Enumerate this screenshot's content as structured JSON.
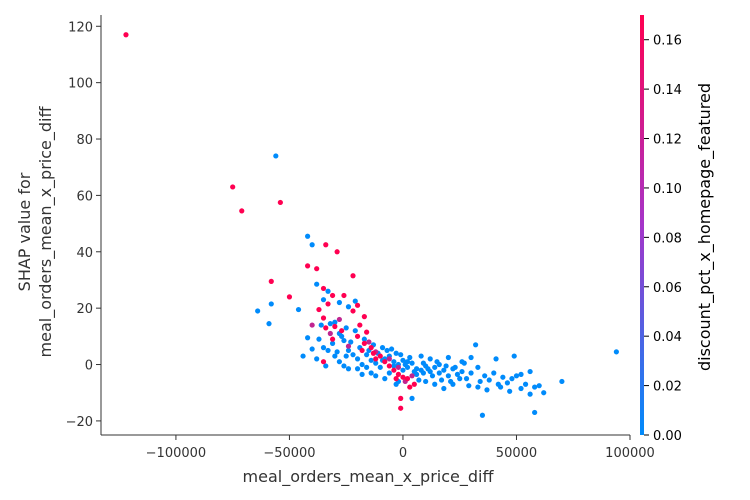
{
  "chart_data": {
    "type": "scatter",
    "xlabel": "meal_orders_mean_x_price_diff",
    "ylabel_lines": [
      "SHAP value for",
      "meal_orders_mean_x_price_diff"
    ],
    "xlim": [
      -133000,
      100000
    ],
    "ylim": [
      -25,
      124
    ],
    "x_ticks": [
      -100000,
      -50000,
      0,
      50000,
      100000
    ],
    "x_tick_labels": [
      "−100000",
      "−50000",
      "0",
      "50000",
      "100000"
    ],
    "y_ticks": [
      -20,
      0,
      20,
      40,
      60,
      80,
      100,
      120
    ],
    "y_tick_labels": [
      "−20",
      "0",
      "20",
      "40",
      "60",
      "80",
      "100",
      "120"
    ],
    "colorbar": {
      "label": "discount_pct_x_homepage_featured",
      "range": [
        0,
        0.17
      ],
      "ticks": [
        0,
        0.02,
        0.04,
        0.06,
        0.08,
        0.1,
        0.12,
        0.14,
        0.16
      ],
      "tick_labels": [
        "0.00",
        "0.02",
        "0.04",
        "0.06",
        "0.08",
        "0.10",
        "0.12",
        "0.14",
        "0.16"
      ],
      "low_color": "#008bfb",
      "high_color": "#ff0051"
    },
    "grid": false,
    "points_high": [
      [
        -122000,
        117
      ],
      [
        -75000,
        63
      ],
      [
        -71000,
        54.5
      ],
      [
        -54000,
        57.5
      ],
      [
        -58000,
        29.5
      ],
      [
        -50000,
        24
      ],
      [
        -42000,
        35
      ],
      [
        -38000,
        34
      ],
      [
        -34000,
        42.5
      ],
      [
        -29000,
        40
      ],
      [
        -22000,
        31.5
      ],
      [
        -35000,
        27
      ],
      [
        -31000,
        24.5
      ],
      [
        -26000,
        24.5
      ],
      [
        -20000,
        21
      ],
      [
        -33000,
        21.5
      ],
      [
        -37000,
        19.5
      ],
      [
        -35000,
        16.5
      ],
      [
        -30000,
        13.5
      ],
      [
        -22000,
        19
      ],
      [
        -17000,
        17
      ],
      [
        -19000,
        14
      ],
      [
        -16000,
        11.5
      ],
      [
        -20000,
        10
      ],
      [
        -27000,
        12
      ],
      [
        -34000,
        13
      ],
      [
        -31000,
        9
      ],
      [
        -17000,
        7.5
      ],
      [
        -14000,
        6
      ],
      [
        -13000,
        4
      ],
      [
        -18000,
        5
      ],
      [
        -10000,
        3
      ],
      [
        -8000,
        1
      ],
      [
        -6000,
        -0.5
      ],
      [
        -4000,
        -2
      ],
      [
        -2000,
        -3.5
      ],
      [
        0,
        -4.5
      ],
      [
        2000,
        -5
      ],
      [
        -3000,
        -5
      ],
      [
        5000,
        -7
      ],
      [
        3000,
        -8
      ],
      [
        -1000,
        -12
      ],
      [
        -1000,
        -15.5
      ],
      [
        -35000,
        1
      ],
      [
        -12000,
        2
      ]
    ],
    "points_mid": [
      [
        -40000,
        14
      ],
      [
        -28000,
        16
      ],
      [
        -24000,
        6.5
      ],
      [
        -12000,
        4.5
      ],
      [
        -6000,
        2
      ],
      [
        -2000,
        -1
      ],
      [
        4000,
        -4
      ],
      [
        1000,
        -6
      ],
      [
        -32000,
        11
      ],
      [
        -15000,
        8
      ]
    ],
    "points_low": [
      [
        -56000,
        74
      ],
      [
        -42000,
        45.5
      ],
      [
        -40000,
        42.5
      ],
      [
        -38000,
        28.5
      ],
      [
        -35000,
        23
      ],
      [
        -33000,
        26
      ],
      [
        -28000,
        22
      ],
      [
        -24000,
        20.5
      ],
      [
        -21000,
        22.5
      ],
      [
        -64000,
        19
      ],
      [
        -58000,
        21.5
      ],
      [
        -59000,
        14.5
      ],
      [
        -46000,
        19.5
      ],
      [
        -42000,
        9.5
      ],
      [
        -40000,
        5.5
      ],
      [
        -36000,
        14
      ],
      [
        -32000,
        14.5
      ],
      [
        -30000,
        15
      ],
      [
        -28000,
        11
      ],
      [
        -26000,
        8.5
      ],
      [
        -24000,
        5
      ],
      [
        -22000,
        3.5
      ],
      [
        -20000,
        2
      ],
      [
        -18000,
        0
      ],
      [
        -16000,
        -1
      ],
      [
        -14000,
        1.5
      ],
      [
        -12000,
        0.5
      ],
      [
        -10000,
        -1
      ],
      [
        -8000,
        2
      ],
      [
        -6000,
        3
      ],
      [
        -4000,
        1
      ],
      [
        -2000,
        0
      ],
      [
        0,
        1.5
      ],
      [
        2000,
        -1
      ],
      [
        4000,
        0.5
      ],
      [
        6000,
        -1.5
      ],
      [
        8000,
        -2
      ],
      [
        10000,
        -0.5
      ],
      [
        12000,
        -2.5
      ],
      [
        14000,
        -1
      ],
      [
        16000,
        -3
      ],
      [
        18000,
        -2
      ],
      [
        20000,
        -4
      ],
      [
        22000,
        -1.5
      ],
      [
        24000,
        -3.5
      ],
      [
        26000,
        -2.5
      ],
      [
        28000,
        -5
      ],
      [
        30000,
        -3
      ],
      [
        32000,
        7
      ],
      [
        34000,
        -6
      ],
      [
        36000,
        -4
      ],
      [
        38000,
        -5.5
      ],
      [
        40000,
        -3
      ],
      [
        42000,
        -7
      ],
      [
        44000,
        -4.5
      ],
      [
        46000,
        -6.5
      ],
      [
        48000,
        -5
      ],
      [
        50000,
        -4
      ],
      [
        52000,
        -3.5
      ],
      [
        54000,
        -7
      ],
      [
        56000,
        -2.5
      ],
      [
        58000,
        -8
      ],
      [
        60000,
        -7.5
      ],
      [
        62000,
        -10
      ],
      [
        56000,
        -10.5
      ],
      [
        70000,
        -6
      ],
      [
        58000,
        -17
      ],
      [
        35000,
        -18
      ],
      [
        22000,
        -7
      ],
      [
        18000,
        -8.5
      ],
      [
        10000,
        -6
      ],
      [
        4000,
        -12
      ],
      [
        -2000,
        -6
      ],
      [
        -8000,
        -5
      ],
      [
        -14000,
        -3
      ],
      [
        -20000,
        -1.5
      ],
      [
        -26000,
        -0.5
      ],
      [
        -34000,
        -0.5
      ],
      [
        -38000,
        2
      ],
      [
        -44000,
        3
      ],
      [
        94000,
        4.5
      ],
      [
        49000,
        3
      ],
      [
        41000,
        2
      ],
      [
        30000,
        2.5
      ],
      [
        26000,
        1
      ],
      [
        20000,
        2.5
      ],
      [
        15000,
        1
      ],
      [
        12000,
        2
      ],
      [
        8000,
        3
      ],
      [
        3000,
        2.5
      ],
      [
        -3000,
        4
      ],
      [
        -7000,
        5
      ],
      [
        -11000,
        4
      ],
      [
        -16000,
        3.5
      ],
      [
        -19000,
        6
      ],
      [
        -23000,
        8
      ],
      [
        -27000,
        10
      ],
      [
        -31000,
        7.5
      ],
      [
        -35000,
        6
      ],
      [
        -25000,
        13
      ],
      [
        -21000,
        12
      ],
      [
        -17000,
        9
      ],
      [
        -13000,
        7
      ],
      [
        -9000,
        6
      ],
      [
        -5000,
        5.5
      ],
      [
        -1000,
        3.5
      ],
      [
        1000,
        0
      ],
      [
        5000,
        -2.5
      ],
      [
        9000,
        -3
      ],
      [
        13000,
        -4
      ],
      [
        17000,
        -5.5
      ],
      [
        21000,
        -6
      ],
      [
        25000,
        -5
      ],
      [
        29000,
        -7.5
      ],
      [
        33000,
        -8
      ],
      [
        37000,
        -9
      ],
      [
        43000,
        -8
      ],
      [
        47000,
        -9.5
      ],
      [
        52000,
        -8.5
      ],
      [
        -30000,
        3
      ],
      [
        -28000,
        1
      ],
      [
        -24000,
        -1.5
      ],
      [
        -18000,
        -3.5
      ],
      [
        -12000,
        -4
      ],
      [
        -6000,
        -3
      ],
      [
        0,
        -2
      ],
      [
        6000,
        -3.5
      ],
      [
        11000,
        -1.5
      ],
      [
        16000,
        0
      ],
      [
        23000,
        -1
      ],
      [
        27000,
        0.5
      ],
      [
        33000,
        -1
      ],
      [
        -3000,
        -7
      ],
      [
        7000,
        -5.5
      ],
      [
        14000,
        -7
      ],
      [
        -37000,
        9
      ],
      [
        -33000,
        5
      ],
      [
        -29000,
        4.5
      ],
      [
        -25000,
        3
      ],
      [
        -15000,
        5
      ],
      [
        -9000,
        1.5
      ],
      [
        -4000,
        -0.5
      ],
      [
        2000,
        1
      ],
      [
        9000,
        0.5
      ],
      [
        19000,
        -0.5
      ]
    ]
  }
}
